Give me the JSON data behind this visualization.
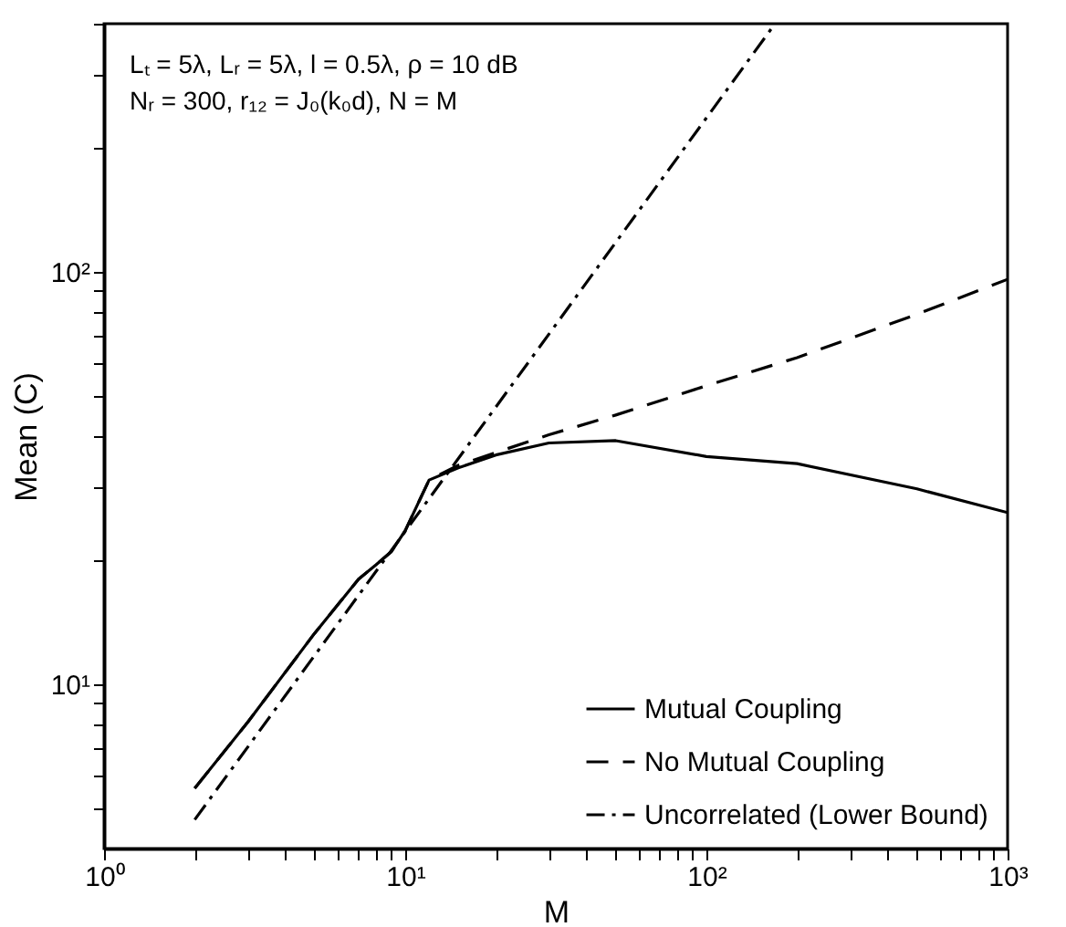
{
  "chart_data": {
    "type": "line",
    "xlabel": "M",
    "ylabel": "Mean (C)",
    "log": "xy",
    "grid": false,
    "legend": "bottom right",
    "annotations": [
      "Lₜ = 5λ, Lᵣ = 5λ, l = 0.5λ, ρ = 10 dB",
      "Nᵣ = 300, r₁₂ = J₀(k₀d), N = M"
    ],
    "xlim": [
      1,
      1000
    ],
    "ylim": [
      4,
      400
    ],
    "xticks": [
      {
        "value": 1,
        "label": "10⁰"
      },
      {
        "value": 2,
        "label": null
      },
      {
        "value": 3,
        "label": null
      },
      {
        "value": 4,
        "label": null
      },
      {
        "value": 5,
        "label": null
      },
      {
        "value": 6,
        "label": null
      },
      {
        "value": 7,
        "label": null
      },
      {
        "value": 8,
        "label": null
      },
      {
        "value": 9,
        "label": null
      },
      {
        "value": 10,
        "label": "10¹"
      },
      {
        "value": 20,
        "label": null
      },
      {
        "value": 30,
        "label": null
      },
      {
        "value": 40,
        "label": null
      },
      {
        "value": 50,
        "label": null
      },
      {
        "value": 60,
        "label": null
      },
      {
        "value": 70,
        "label": null
      },
      {
        "value": 80,
        "label": null
      },
      {
        "value": 90,
        "label": null
      },
      {
        "value": 100,
        "label": "10²"
      },
      {
        "value": 200,
        "label": null
      },
      {
        "value": 300,
        "label": null
      },
      {
        "value": 400,
        "label": null
      },
      {
        "value": 500,
        "label": null
      },
      {
        "value": 600,
        "label": null
      },
      {
        "value": 700,
        "label": null
      },
      {
        "value": 800,
        "label": null
      },
      {
        "value": 900,
        "label": null
      },
      {
        "value": 1000,
        "label": "10³"
      }
    ],
    "yticks": [
      {
        "value": 5,
        "label": null
      },
      {
        "value": 6,
        "label": null
      },
      {
        "value": 7,
        "label": null
      },
      {
        "value": 8,
        "label": null
      },
      {
        "value": 9,
        "label": null
      },
      {
        "value": 10,
        "label": "10¹"
      },
      {
        "value": 20,
        "label": null
      },
      {
        "value": 30,
        "label": null
      },
      {
        "value": 40,
        "label": null
      },
      {
        "value": 50,
        "label": null
      },
      {
        "value": 60,
        "label": null
      },
      {
        "value": 70,
        "label": null
      },
      {
        "value": 80,
        "label": null
      },
      {
        "value": 90,
        "label": null
      },
      {
        "value": 100,
        "label": "10²"
      },
      {
        "value": 200,
        "label": null
      },
      {
        "value": 300,
        "label": null
      },
      {
        "value": 400,
        "label": null
      }
    ],
    "series": [
      {
        "name": "Mutual Coupling",
        "color": "#000000",
        "line_style": "solid",
        "x": [
          2,
          3,
          5,
          7,
          8,
          9,
          10,
          12,
          15,
          20,
          30,
          50,
          100,
          200,
          500,
          1000
        ],
        "values": [
          5.6,
          8.1,
          13.3,
          18,
          19.5,
          21,
          23.6,
          31.3,
          33.5,
          36,
          38.5,
          39,
          35.7,
          34.3,
          29.8,
          26.1
        ]
      },
      {
        "name": "No Mutual Coupling",
        "color": "#000000",
        "line_style": "dashed",
        "x": [
          2,
          3,
          5,
          7,
          8,
          9,
          10,
          12,
          15,
          20,
          30,
          50,
          100,
          200,
          500,
          1000
        ],
        "values": [
          5.6,
          8.1,
          13.3,
          18,
          19.5,
          21,
          23.6,
          31.3,
          34,
          36.5,
          40.3,
          45,
          53,
          62,
          79,
          96
        ]
      },
      {
        "name": "Uncorrelated (Lower Bound)",
        "color": "#000000",
        "line_style": "dash-dot",
        "x": [
          2,
          10,
          169
        ],
        "values": [
          4.7,
          23.5,
          400
        ]
      }
    ]
  }
}
